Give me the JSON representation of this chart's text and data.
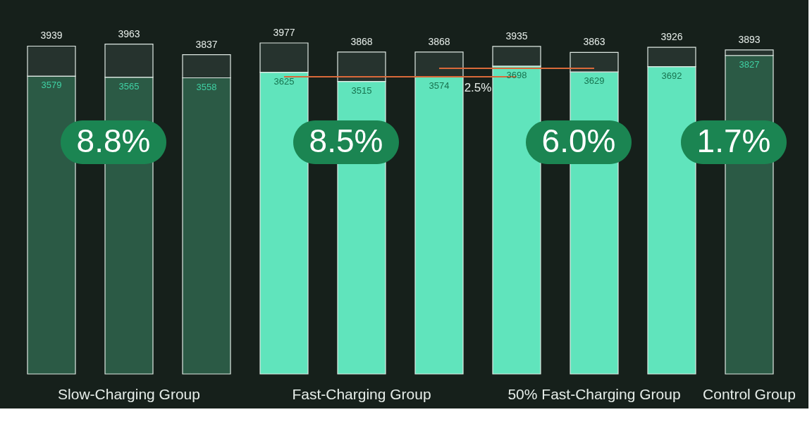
{
  "chart_data": {
    "type": "bar",
    "stacked": true,
    "categories": [
      null,
      "Slow-Charging Group",
      null,
      null,
      "Fast-Charging Group",
      null,
      null,
      "50% Fast-Charging Group",
      null,
      "Control Group"
    ],
    "series": [
      {
        "colors": [
          "#2b5a45",
          "#2b5a45",
          "#2b5a45",
          "#60e4bc",
          "#60e4bc",
          "#60e4bc",
          "#60e4bc",
          "#60e4bc",
          "#60e4bc",
          "#2b5a45"
        ],
        "values": [
          3579,
          3565,
          3558,
          3625,
          3515,
          3574,
          3698,
          3629,
          3692,
          3827
        ],
        "value_labels": [
          "3579",
          "3565",
          "3558",
          "3625",
          "3515",
          "3574",
          "3698",
          "3629",
          "3692",
          "3827"
        ]
      },
      {
        "color": "#26332e",
        "values": [
          360,
          398,
          279,
          352,
          353,
          294,
          237,
          234,
          234,
          66
        ]
      },
      {
        "type": "line",
        "color": "#d9693a",
        "values": [
          null,
          null,
          null,
          3571,
          3571,
          3571,
          3571,
          null,
          null,
          null
        ]
      },
      {
        "type": "line",
        "color": "#d9693a",
        "values": [
          null,
          null,
          null,
          null,
          null,
          3673,
          3673,
          3673,
          null,
          null
        ]
      }
    ],
    "totals": [
      "3939",
      "3963",
      "3837",
      "3977",
      "3868",
      "3868",
      "3935",
      "3863",
      "3926",
      "3893"
    ],
    "annotations": [
      "8.8%",
      "8.5%",
      "6.0%",
      "1.7%",
      "2.5%"
    ]
  }
}
